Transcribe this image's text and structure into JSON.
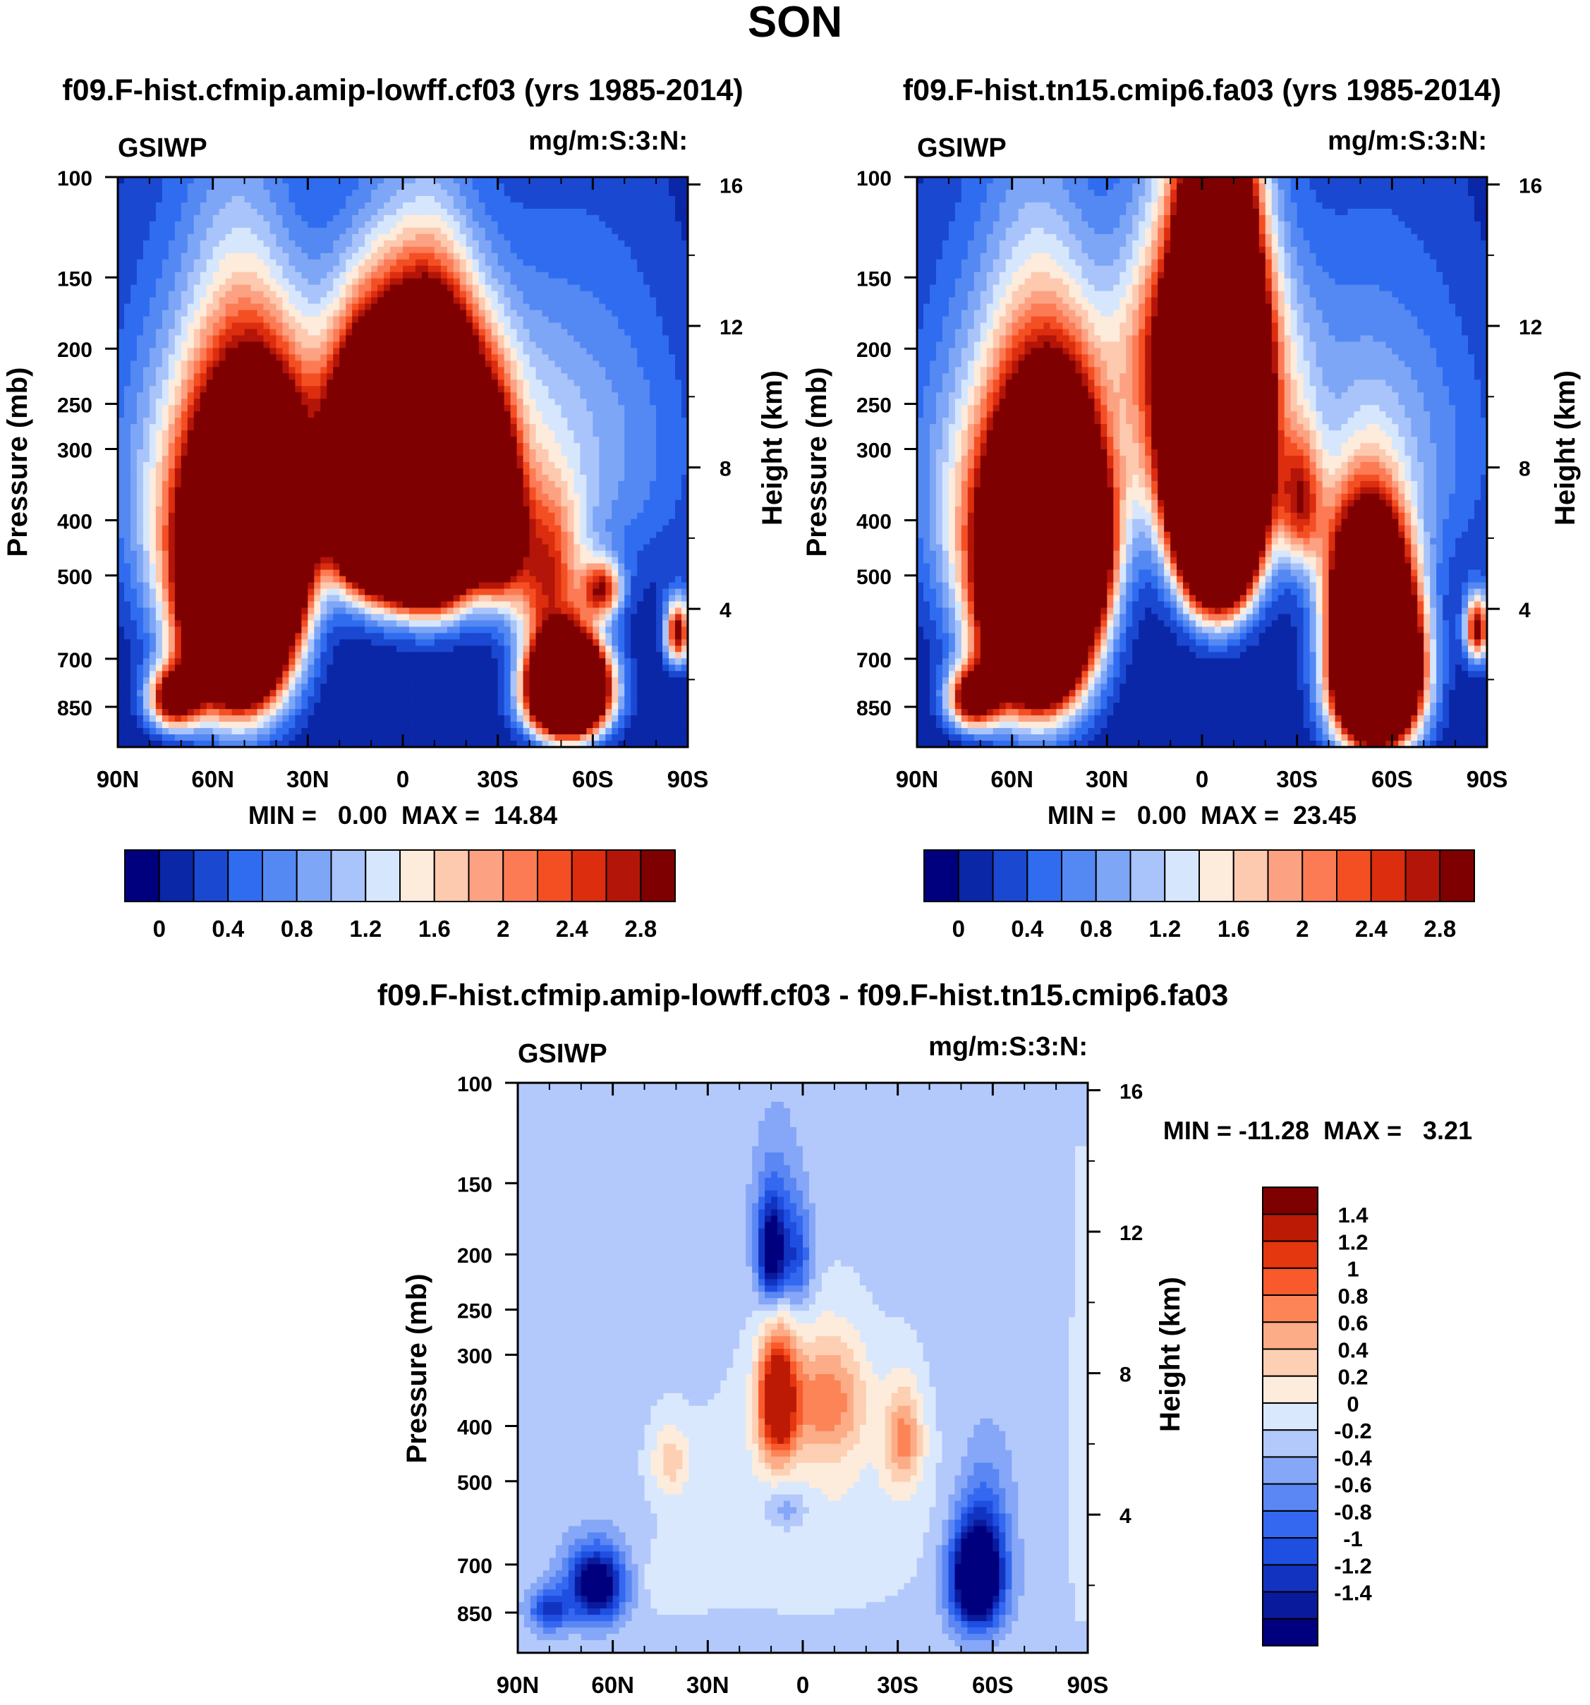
{
  "figure": {
    "title": "SON"
  },
  "palettes": {
    "absolute": [
      "#00007f",
      "#0a27a7",
      "#1a48d1",
      "#2f6cf0",
      "#5488f2",
      "#7ea6f6",
      "#a9c4fa",
      "#d6e7fd",
      "#fdebdb",
      "#fdc9af",
      "#fca283",
      "#fc7b55",
      "#f44f23",
      "#dc2d0f",
      "#b31508",
      "#7f0000"
    ],
    "difference": [
      "#00007f",
      "#0a1a9c",
      "#1233c0",
      "#1e4fe0",
      "#3468f0",
      "#5a87f3",
      "#86a6f7",
      "#b3c9fb",
      "#d9e8fd",
      "#fdecdb",
      "#fdcfb3",
      "#fcac86",
      "#fc8457",
      "#f85a2b",
      "#e4370f",
      "#bd1a06",
      "#7f0000"
    ]
  },
  "chart_data": [
    {
      "type": "heatmap",
      "panel": "top-left",
      "title": "f09.F-hist.cfmip.amip-lowff.cf03 (yrs 1985-2014)",
      "left_string": "GSIWP",
      "right_string": "mg/m:S:3:N:",
      "ylabel": "Pressure (mb)",
      "ylabel_right": "Height (km)",
      "x_ticks": [
        "90N",
        "60N",
        "30N",
        "0",
        "30S",
        "60S",
        "90S"
      ],
      "x_tick_values": [
        90,
        60,
        30,
        0,
        -30,
        -60,
        -90
      ],
      "y_ticks": [
        "100",
        "150",
        "200",
        "250",
        "300",
        "400",
        "500",
        "700",
        "850"
      ],
      "y_tick_values": [
        100,
        150,
        200,
        250,
        300,
        400,
        500,
        700,
        850
      ],
      "y_range": [
        100,
        1000
      ],
      "height_ticks": [
        "16",
        "12",
        "8",
        "4"
      ],
      "height_tick_values": [
        16,
        12,
        8,
        4
      ],
      "min_max_label": "MIN =   0.00  MAX =  14.84",
      "min": 0.0,
      "max": 14.84,
      "colorbar_labels": [
        "0",
        "0.4",
        "0.8",
        "1.2",
        "1.6",
        "2",
        "2.4",
        "2.8"
      ],
      "colorbar_levels": [
        0,
        0.2,
        0.4,
        0.6,
        0.8,
        1.0,
        1.2,
        1.4,
        1.6,
        1.8,
        2.0,
        2.2,
        2.4,
        2.6,
        2.8
      ],
      "colorbar_orientation": "horizontal",
      "palette": "absolute",
      "features": [
        {
          "lat": -8,
          "p": 370,
          "value": 14.0,
          "wlat": 15,
          "wp": 150
        },
        {
          "lat": 10,
          "p": 370,
          "value": 8.0,
          "wlat": 11,
          "wp": 130
        },
        {
          "lat": 0,
          "p": 330,
          "value": 3.0,
          "wlat": 28,
          "wp": 150
        },
        {
          "lat": 52,
          "p": 560,
          "value": 10.0,
          "wlat": 15,
          "wp": 260
        },
        {
          "lat": 42,
          "p": 430,
          "value": 6.0,
          "wlat": 12,
          "wp": 160
        },
        {
          "lat": 72,
          "p": 820,
          "value": 3.5,
          "wlat": 8,
          "wp": 100
        },
        {
          "lat": 64,
          "p": 430,
          "value": 1.4,
          "wlat": 20,
          "wp": 220
        },
        {
          "lat": -52,
          "p": 790,
          "value": 11.0,
          "wlat": 11,
          "wp": 140
        },
        {
          "lat": -30,
          "p": 400,
          "value": 3.6,
          "wlat": 7,
          "wp": 120
        },
        {
          "lat": -45,
          "p": 500,
          "value": 2.2,
          "wlat": 12,
          "wp": 160
        },
        {
          "lat": -63,
          "p": 530,
          "value": 2.3,
          "wlat": 6,
          "wp": 60
        },
        {
          "lat": -87,
          "p": 630,
          "value": 3.0,
          "wlat": 4,
          "wp": 80
        },
        {
          "lat": -58,
          "p": 300,
          "value": 0.9,
          "wlat": 35,
          "wp": 200
        },
        {
          "lat": 58,
          "p": 300,
          "value": 0.8,
          "wlat": 40,
          "wp": 200
        },
        {
          "lat": 0,
          "p": 220,
          "value": 1.0,
          "wlat": 35,
          "wp": 80
        }
      ]
    },
    {
      "type": "heatmap",
      "panel": "top-right",
      "title": "f09.F-hist.tn15.cmip6.fa03 (yrs 1985-2014)",
      "left_string": "GSIWP",
      "right_string": "mg/m:S:3:N:",
      "ylabel": "Pressure (mb)",
      "ylabel_right": "Height (km)",
      "x_ticks": [
        "90N",
        "60N",
        "30N",
        "0",
        "30S",
        "60S",
        "90S"
      ],
      "x_tick_values": [
        90,
        60,
        30,
        0,
        -30,
        -60,
        -90
      ],
      "y_ticks": [
        "100",
        "150",
        "200",
        "250",
        "300",
        "400",
        "500",
        "700",
        "850"
      ],
      "y_tick_values": [
        100,
        150,
        200,
        250,
        300,
        400,
        500,
        700,
        850
      ],
      "y_range": [
        100,
        1000
      ],
      "height_ticks": [
        "16",
        "12",
        "8",
        "4"
      ],
      "height_tick_values": [
        16,
        12,
        8,
        4
      ],
      "min_max_label": "MIN =   0.00  MAX =  23.45",
      "min": 0.0,
      "max": 23.45,
      "colorbar_labels": [
        "0",
        "0.4",
        "0.8",
        "1.2",
        "1.6",
        "2",
        "2.4",
        "2.8"
      ],
      "colorbar_levels": [
        0,
        0.2,
        0.4,
        0.6,
        0.8,
        1.0,
        1.2,
        1.4,
        1.6,
        1.8,
        2.0,
        2.2,
        2.4,
        2.6,
        2.8
      ],
      "colorbar_orientation": "horizontal",
      "palette": "absolute",
      "features": [
        {
          "lat": -5,
          "p": 320,
          "value": 20.0,
          "wlat": 11,
          "wp": 180
        },
        {
          "lat": 0,
          "p": 250,
          "value": 3.0,
          "wlat": 22,
          "wp": 160
        },
        {
          "lat": 52,
          "p": 560,
          "value": 10.0,
          "wlat": 15,
          "wp": 260
        },
        {
          "lat": 42,
          "p": 430,
          "value": 6.0,
          "wlat": 12,
          "wp": 160
        },
        {
          "lat": 72,
          "p": 820,
          "value": 3.5,
          "wlat": 8,
          "wp": 100
        },
        {
          "lat": 64,
          "p": 430,
          "value": 1.4,
          "wlat": 20,
          "wp": 220
        },
        {
          "lat": -55,
          "p": 720,
          "value": 12.0,
          "wlat": 12,
          "wp": 230
        },
        {
          "lat": -31,
          "p": 370,
          "value": 2.0,
          "wlat": 7,
          "wp": 100
        },
        {
          "lat": -50,
          "p": 480,
          "value": 2.3,
          "wlat": 12,
          "wp": 140
        },
        {
          "lat": -87,
          "p": 620,
          "value": 3.0,
          "wlat": 4,
          "wp": 80
        },
        {
          "lat": -58,
          "p": 300,
          "value": 0.9,
          "wlat": 35,
          "wp": 200
        },
        {
          "lat": 58,
          "p": 300,
          "value": 0.8,
          "wlat": 40,
          "wp": 200
        },
        {
          "lat": 0,
          "p": 190,
          "value": 1.0,
          "wlat": 30,
          "wp": 70
        }
      ]
    },
    {
      "type": "heatmap",
      "panel": "bottom-difference",
      "title": "f09.F-hist.cfmip.amip-lowff.cf03 - f09.F-hist.tn15.cmip6.fa03",
      "left_string": "GSIWP",
      "right_string": "mg/m:S:3:N:",
      "ylabel": "Pressure (mb)",
      "ylabel_right": "Height (km)",
      "x_ticks": [
        "90N",
        "60N",
        "30N",
        "0",
        "30S",
        "60S",
        "90S"
      ],
      "x_tick_values": [
        90,
        60,
        30,
        0,
        -30,
        -60,
        -90
      ],
      "y_ticks": [
        "100",
        "150",
        "200",
        "250",
        "300",
        "400",
        "500",
        "700",
        "850"
      ],
      "y_tick_values": [
        100,
        150,
        200,
        250,
        300,
        400,
        500,
        700,
        850
      ],
      "y_range": [
        100,
        1000
      ],
      "height_ticks": [
        "16",
        "12",
        "8",
        "4"
      ],
      "height_tick_values": [
        16,
        12,
        8,
        4
      ],
      "min_max_label": "MIN = -11.28  MAX =   3.21",
      "min": -11.28,
      "max": 3.21,
      "colorbar_labels": [
        "1.4",
        "1.2",
        "1",
        "0.8",
        "0.6",
        "0.4",
        "0.2",
        "0",
        "-0.2",
        "-0.4",
        "-0.6",
        "-0.8",
        "-1",
        "-1.2",
        "-1.4"
      ],
      "colorbar_levels": [
        -1.4,
        -1.2,
        -1.0,
        -0.8,
        -0.6,
        -0.4,
        -0.2,
        0,
        0.2,
        0.4,
        0.6,
        0.8,
        1.0,
        1.2,
        1.4
      ],
      "colorbar_orientation": "vertical",
      "palette": "difference",
      "base_value": -0.1,
      "features": [
        {
          "lat": -2,
          "p": 560,
          "value": 0.3,
          "wlat": 40,
          "wp": 280
        },
        {
          "lat": 45,
          "p": 760,
          "value": 0.15,
          "wlat": 18,
          "wp": 120
        },
        {
          "lat": -88,
          "p": 500,
          "value": 0.25,
          "wlat": 4,
          "wp": 400
        },
        {
          "lat": 8,
          "p": 360,
          "value": 2.0,
          "wlat": 6,
          "wp": 90
        },
        {
          "lat": -8,
          "p": 360,
          "value": 0.9,
          "wlat": 12,
          "wp": 90
        },
        {
          "lat": -32,
          "p": 420,
          "value": 0.85,
          "wlat": 6,
          "wp": 90
        },
        {
          "lat": 42,
          "p": 460,
          "value": 0.55,
          "wlat": 6,
          "wp": 70
        },
        {
          "lat": 10,
          "p": 200,
          "value": -1.4,
          "wlat": 4,
          "wp": 40
        },
        {
          "lat": 2,
          "p": 205,
          "value": -0.7,
          "wlat": 5,
          "wp": 40
        },
        {
          "lat": 8,
          "p": 180,
          "value": -0.5,
          "wlat": 8,
          "wp": 60
        },
        {
          "lat": -55,
          "p": 740,
          "value": -2.5,
          "wlat": 8,
          "wp": 150
        },
        {
          "lat": -58,
          "p": 560,
          "value": -0.4,
          "wlat": 8,
          "wp": 160
        },
        {
          "lat": 65,
          "p": 760,
          "value": -1.8,
          "wlat": 9,
          "wp": 110
        },
        {
          "lat": 80,
          "p": 840,
          "value": -1.0,
          "wlat": 6,
          "wp": 70
        },
        {
          "lat": 5,
          "p": 560,
          "value": -0.45,
          "wlat": 7,
          "wp": 50
        }
      ]
    }
  ]
}
